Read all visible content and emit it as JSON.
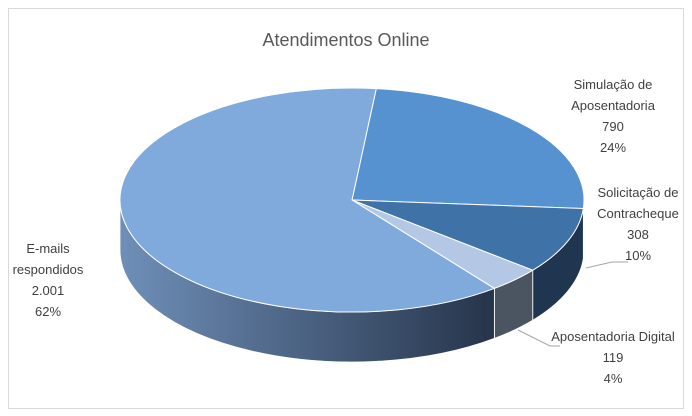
{
  "chart_data": {
    "type": "pie3d",
    "title": "Atendimentos Online",
    "categories": [
      "Simulação de Aposentadoria",
      "Solicitação de Contracheque",
      "Aposentadoria Digital",
      "E-mails respondidos"
    ],
    "values": [
      790,
      308,
      119,
      2001
    ],
    "value_labels": [
      "790",
      "308",
      "119",
      "2.001"
    ],
    "percent_labels": [
      "24%",
      "10%",
      "4%",
      "62%"
    ],
    "colors": [
      "#5592cf",
      "#3f73a8",
      "#b4c8e6",
      "#7faadb"
    ]
  }
}
